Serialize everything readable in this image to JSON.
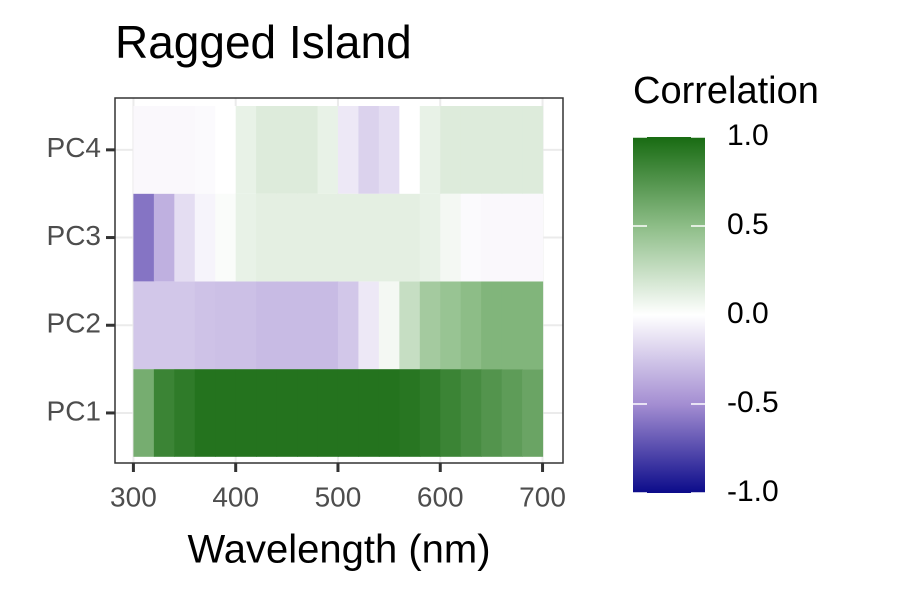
{
  "chart_data": {
    "type": "heatmap",
    "title": "Ragged Island",
    "x_label": "Wavelength (nm)",
    "legend_title": "Correlation",
    "x": [
      310,
      330,
      350,
      370,
      390,
      410,
      430,
      450,
      470,
      490,
      510,
      530,
      550,
      570,
      590,
      610,
      630,
      650,
      670,
      690
    ],
    "y": [
      "PC1",
      "PC2",
      "PC3",
      "PC4"
    ],
    "z": [
      [
        0.6,
        0.85,
        0.9,
        0.95,
        0.95,
        0.95,
        0.95,
        0.95,
        0.95,
        0.95,
        0.95,
        0.95,
        0.95,
        0.93,
        0.9,
        0.85,
        0.8,
        0.75,
        0.7,
        0.65
      ],
      [
        -0.25,
        -0.25,
        -0.25,
        -0.27,
        -0.28,
        -0.28,
        -0.3,
        -0.3,
        -0.3,
        -0.3,
        -0.25,
        -0.1,
        0.05,
        0.25,
        0.4,
        0.45,
        0.5,
        0.55,
        0.55,
        0.55
      ],
      [
        -0.6,
        -0.35,
        -0.15,
        -0.05,
        0.02,
        0.1,
        0.12,
        0.12,
        0.12,
        0.12,
        0.12,
        0.12,
        0.12,
        0.12,
        0.1,
        0.05,
        -0.02,
        -0.03,
        -0.03,
        -0.03
      ],
      [
        -0.03,
        -0.03,
        -0.03,
        -0.02,
        0.0,
        0.1,
        0.15,
        0.15,
        0.15,
        0.1,
        -0.1,
        -0.2,
        -0.15,
        0.0,
        0.1,
        0.15,
        0.15,
        0.15,
        0.15,
        0.15
      ]
    ],
    "xlim": [
      282,
      720
    ],
    "xticks": [
      300,
      400,
      500,
      600,
      700
    ],
    "clim": [
      -1,
      1
    ],
    "colorscale": [
      "#0b0b8a",
      "#a48ed2",
      "#ffffff",
      "#8dbd87",
      "#186b12"
    ],
    "cticks": [
      {
        "value": -1,
        "label": "-1.0"
      },
      {
        "value": -0.5,
        "label": "-0.5"
      },
      {
        "value": 0,
        "label": "0.0"
      },
      {
        "value": 0.5,
        "label": "0.5"
      },
      {
        "value": 1,
        "label": "1.0"
      }
    ],
    "grid": true
  }
}
